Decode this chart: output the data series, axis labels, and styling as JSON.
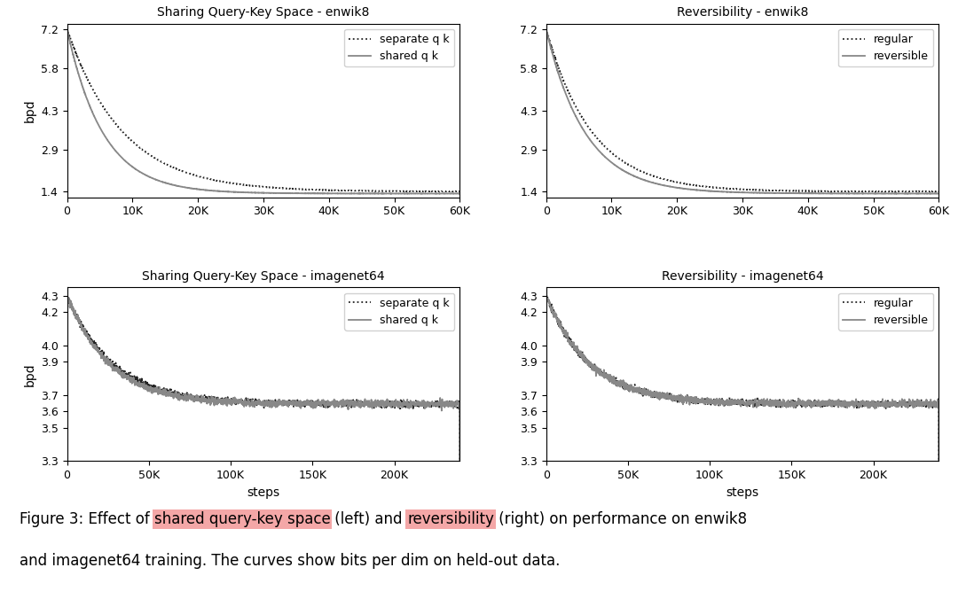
{
  "titles": [
    "Sharing Query-Key Space - enwik8",
    "Reversibility - enwik8",
    "Sharing Query-Key Space - imagenet64",
    "Reversibility - imagenet64"
  ],
  "enwik8_ylim": [
    1.2,
    7.4
  ],
  "enwik8_yticks": [
    1.4,
    2.9,
    4.3,
    5.8,
    7.2
  ],
  "enwik8_xticks": [
    0,
    10000,
    20000,
    30000,
    40000,
    50000,
    60000
  ],
  "imagenet64_ylim": [
    3.3,
    4.35
  ],
  "imagenet64_yticks": [
    3.3,
    3.5,
    3.6,
    3.7,
    3.9,
    4.0,
    4.2,
    4.3
  ],
  "imagenet64_xticks": [
    0,
    50000,
    100000,
    150000,
    200000
  ],
  "enwik8_xlim": [
    0,
    60000
  ],
  "imagenet64_xlim": [
    0,
    240000
  ],
  "legend_left": [
    "separate q k",
    "shared q k"
  ],
  "legend_right": [
    "regular",
    "reversible"
  ],
  "line_color_dotted": "#222222",
  "line_color_solid": "#888888",
  "ylabel": "bpd",
  "xlabel": "steps",
  "highlight_color": "#f4a7a7",
  "caption_parts": [
    [
      "Figure 3: Effect of ",
      false
    ],
    [
      "shared query-key space",
      true
    ],
    [
      " (left) and ",
      false
    ],
    [
      "reversibility",
      true
    ],
    [
      " (right) on performance on enwik8",
      false
    ]
  ],
  "caption_line2": "and imagenet64 training. The curves show bits per dim on held-out data.",
  "caption_fontsize": 12
}
